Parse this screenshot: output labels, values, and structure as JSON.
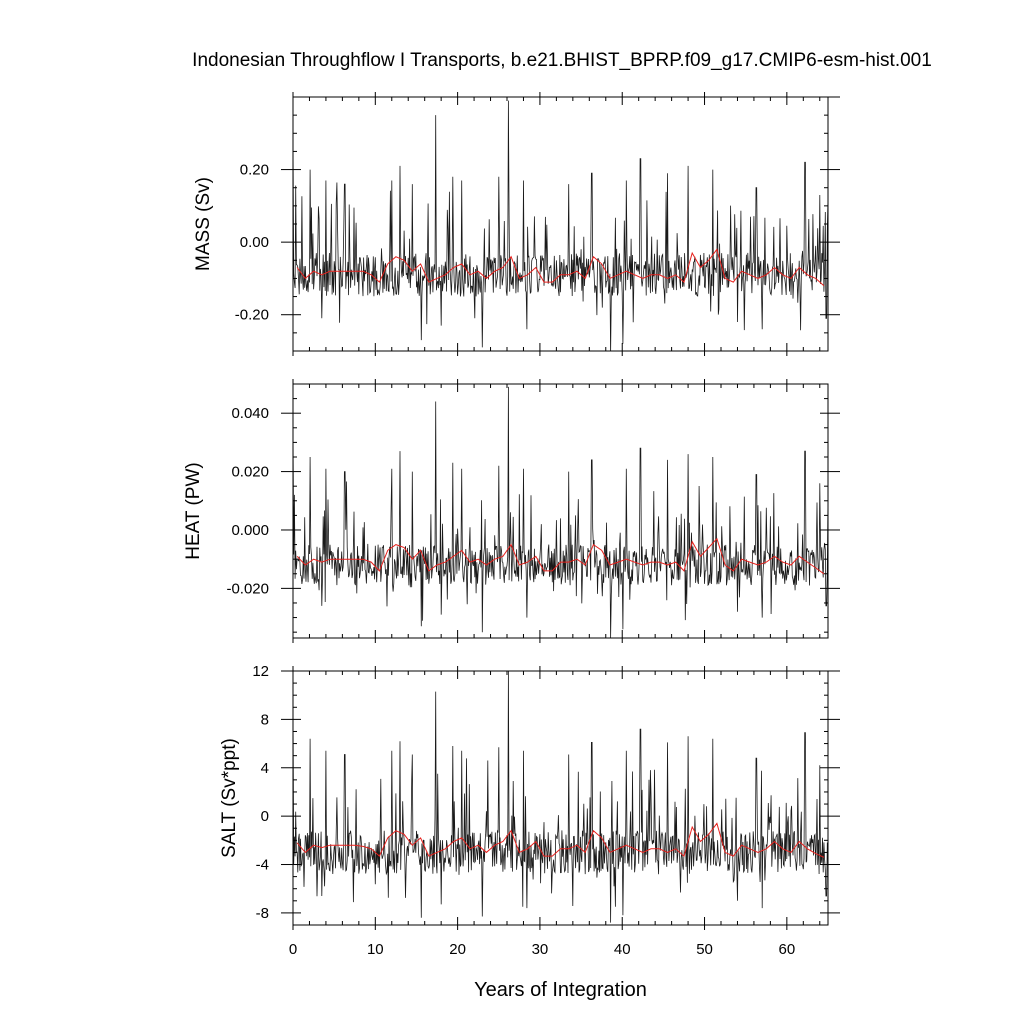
{
  "title": "Indonesian Throughflow I Transports, b.e21.BHIST_BPRP.f09_g17.CMIP6-esm-hist.001",
  "colors": {
    "raw": "#1a1a1a",
    "annual_mean": "#e8211d",
    "axes": "#000000"
  },
  "chart_data": [
    {
      "type": "line",
      "ylabel": "MASS (Sv)",
      "xlabel": "",
      "xlim": [
        0,
        65
      ],
      "ylim": [
        -0.3,
        0.4
      ],
      "x_ticks": [
        0,
        10,
        20,
        30,
        40,
        50,
        60
      ],
      "y_ticks": [
        -0.2,
        0.0,
        0.2
      ],
      "y_tick_labels": [
        "-0.20",
        "0.00",
        "0.20"
      ],
      "x_tick_labels_shown": false,
      "series": [
        {
          "role": "monthly",
          "spikes": [
            [
              0.0,
              0.28
            ],
            [
              2.1,
              0.2
            ],
            [
              4.0,
              0.17
            ],
            [
              6.3,
              0.16
            ],
            [
              12.0,
              0.17
            ],
            [
              13.0,
              0.21
            ],
            [
              14.5,
              0.16
            ],
            [
              17.3,
              0.35
            ],
            [
              19.4,
              0.18
            ],
            [
              20.5,
              0.17
            ],
            [
              25.0,
              0.18
            ],
            [
              26.2,
              0.39
            ],
            [
              28.0,
              0.17
            ],
            [
              33.5,
              0.16
            ],
            [
              36.3,
              0.19
            ],
            [
              40.5,
              0.17
            ],
            [
              42.2,
              0.23
            ],
            [
              45.5,
              0.19
            ],
            [
              48.0,
              0.21
            ],
            [
              51.0,
              0.2
            ],
            [
              56.3,
              0.15
            ],
            [
              62.2,
              0.22
            ],
            [
              64.0,
              0.13
            ]
          ],
          "troughs": [
            [
              3.5,
              -0.21
            ],
            [
              15.6,
              -0.27
            ],
            [
              18.0,
              -0.23
            ],
            [
              23.0,
              -0.29
            ],
            [
              28.4,
              -0.24
            ],
            [
              38.6,
              -0.31
            ],
            [
              40.1,
              -0.28
            ],
            [
              54.0,
              -0.22
            ],
            [
              57.0,
              -0.24
            ],
            [
              64.8,
              -0.21
            ]
          ],
          "baseline": -0.09,
          "noise": 0.06
        },
        {
          "role": "annual_mean",
          "x": [
            0.5,
            1.5,
            2.5,
            3.5,
            4.5,
            5.5,
            6.5,
            7.5,
            8.5,
            9.5,
            10.5,
            11.5,
            12.5,
            13.5,
            14.5,
            15.5,
            16.5,
            17.5,
            18.5,
            19.5,
            20.5,
            21.5,
            22.5,
            23.5,
            24.5,
            25.5,
            26.5,
            27.5,
            28.5,
            29.5,
            30.5,
            31.5,
            32.5,
            33.5,
            34.5,
            35.5,
            36.5,
            37.5,
            38.5,
            39.5,
            40.5,
            41.5,
            42.5,
            43.5,
            44.5,
            45.5,
            46.5,
            47.5,
            48.5,
            49.5,
            50.5,
            51.5,
            52.5,
            53.5,
            54.5,
            55.5,
            56.5,
            57.5,
            58.5,
            59.5,
            60.5,
            61.5,
            62.5,
            63.5,
            64.5
          ],
          "values": [
            -0.07,
            -0.1,
            -0.08,
            -0.09,
            -0.08,
            -0.08,
            -0.08,
            -0.08,
            -0.08,
            -0.09,
            -0.11,
            -0.06,
            -0.04,
            -0.05,
            -0.08,
            -0.06,
            -0.11,
            -0.1,
            -0.09,
            -0.07,
            -0.06,
            -0.09,
            -0.08,
            -0.1,
            -0.08,
            -0.07,
            -0.04,
            -0.1,
            -0.09,
            -0.07,
            -0.11,
            -0.11,
            -0.09,
            -0.09,
            -0.08,
            -0.1,
            -0.04,
            -0.06,
            -0.1,
            -0.09,
            -0.08,
            -0.09,
            -0.1,
            -0.09,
            -0.09,
            -0.1,
            -0.09,
            -0.11,
            -0.03,
            -0.07,
            -0.05,
            -0.02,
            -0.1,
            -0.11,
            -0.08,
            -0.09,
            -0.1,
            -0.09,
            -0.07,
            -0.09,
            -0.1,
            -0.07,
            -0.09,
            -0.1,
            -0.12
          ]
        }
      ]
    },
    {
      "type": "line",
      "ylabel": "HEAT (PW)",
      "xlabel": "",
      "xlim": [
        0,
        65
      ],
      "ylim": [
        -0.037,
        0.05
      ],
      "x_ticks": [
        0,
        10,
        20,
        30,
        40,
        50,
        60
      ],
      "y_ticks": [
        -0.02,
        0.0,
        0.02,
        0.04
      ],
      "y_tick_labels": [
        "-0.020",
        "0.000",
        "0.020",
        "0.040"
      ],
      "x_tick_labels_shown": false,
      "series": [
        {
          "role": "monthly",
          "spikes": [
            [
              0.0,
              0.035
            ],
            [
              2.1,
              0.025
            ],
            [
              4.0,
              0.021
            ],
            [
              6.3,
              0.02
            ],
            [
              12.0,
              0.021
            ],
            [
              13.0,
              0.027
            ],
            [
              14.5,
              0.02
            ],
            [
              17.3,
              0.044
            ],
            [
              19.4,
              0.023
            ],
            [
              20.5,
              0.021
            ],
            [
              25.0,
              0.022
            ],
            [
              26.2,
              0.049
            ],
            [
              28.0,
              0.021
            ],
            [
              33.5,
              0.02
            ],
            [
              36.3,
              0.024
            ],
            [
              40.5,
              0.021
            ],
            [
              42.2,
              0.028
            ],
            [
              45.5,
              0.024
            ],
            [
              48.0,
              0.026
            ],
            [
              51.0,
              0.025
            ],
            [
              56.3,
              0.019
            ],
            [
              62.2,
              0.027
            ],
            [
              64.0,
              0.016
            ]
          ],
          "troughs": [
            [
              3.5,
              -0.026
            ],
            [
              15.6,
              -0.033
            ],
            [
              18.0,
              -0.029
            ],
            [
              23.0,
              -0.035
            ],
            [
              28.4,
              -0.03
            ],
            [
              38.6,
              -0.037
            ],
            [
              40.1,
              -0.034
            ],
            [
              54.0,
              -0.028
            ],
            [
              57.0,
              -0.03
            ],
            [
              64.8,
              -0.026
            ]
          ],
          "baseline": -0.012,
          "noise": 0.007
        },
        {
          "role": "annual_mean",
          "x": [
            0.5,
            1.5,
            2.5,
            3.5,
            4.5,
            5.5,
            6.5,
            7.5,
            8.5,
            9.5,
            10.5,
            11.5,
            12.5,
            13.5,
            14.5,
            15.5,
            16.5,
            17.5,
            18.5,
            19.5,
            20.5,
            21.5,
            22.5,
            23.5,
            24.5,
            25.5,
            26.5,
            27.5,
            28.5,
            29.5,
            30.5,
            31.5,
            32.5,
            33.5,
            34.5,
            35.5,
            36.5,
            37.5,
            38.5,
            39.5,
            40.5,
            41.5,
            42.5,
            43.5,
            44.5,
            45.5,
            46.5,
            47.5,
            48.5,
            49.5,
            50.5,
            51.5,
            52.5,
            53.5,
            54.5,
            55.5,
            56.5,
            57.5,
            58.5,
            59.5,
            60.5,
            61.5,
            62.5,
            63.5,
            64.5
          ],
          "values": [
            -0.009,
            -0.012,
            -0.01,
            -0.011,
            -0.01,
            -0.01,
            -0.01,
            -0.01,
            -0.01,
            -0.011,
            -0.014,
            -0.007,
            -0.005,
            -0.006,
            -0.01,
            -0.007,
            -0.014,
            -0.012,
            -0.011,
            -0.009,
            -0.007,
            -0.011,
            -0.01,
            -0.012,
            -0.01,
            -0.009,
            -0.005,
            -0.012,
            -0.011,
            -0.009,
            -0.014,
            -0.014,
            -0.011,
            -0.011,
            -0.01,
            -0.012,
            -0.005,
            -0.007,
            -0.012,
            -0.011,
            -0.01,
            -0.011,
            -0.012,
            -0.011,
            -0.011,
            -0.012,
            -0.011,
            -0.014,
            -0.004,
            -0.009,
            -0.006,
            -0.003,
            -0.012,
            -0.014,
            -0.01,
            -0.011,
            -0.012,
            -0.011,
            -0.009,
            -0.011,
            -0.012,
            -0.009,
            -0.011,
            -0.013,
            -0.015
          ]
        }
      ]
    },
    {
      "type": "line",
      "ylabel": "SALT (Sv*ppt)",
      "xlabel": "Years of Integration",
      "xlim": [
        0,
        65
      ],
      "ylim": [
        -9,
        12
      ],
      "x_ticks": [
        0,
        10,
        20,
        30,
        40,
        50,
        60
      ],
      "x_tick_labels": [
        "0",
        "10",
        "20",
        "30",
        "40",
        "50",
        "60"
      ],
      "y_ticks": [
        -8,
        -4,
        0,
        4,
        8,
        12
      ],
      "y_tick_labels": [
        "-8",
        "-4",
        "0",
        "4",
        "8",
        "12"
      ],
      "x_tick_labels_shown": true,
      "series": [
        {
          "role": "monthly",
          "spikes": [
            [
              0.0,
              9.0
            ],
            [
              2.1,
              6.4
            ],
            [
              4.0,
              5.4
            ],
            [
              6.3,
              5.1
            ],
            [
              12.0,
              5.4
            ],
            [
              13.0,
              6.2
            ],
            [
              14.5,
              5.1
            ],
            [
              17.3,
              10.3
            ],
            [
              19.4,
              5.8
            ],
            [
              20.5,
              5.4
            ],
            [
              25.0,
              5.7
            ],
            [
              26.2,
              12.0
            ],
            [
              28.0,
              5.4
            ],
            [
              33.5,
              5.1
            ],
            [
              36.3,
              6.1
            ],
            [
              40.5,
              5.4
            ],
            [
              42.2,
              7.2
            ],
            [
              45.5,
              6.1
            ],
            [
              48.0,
              6.6
            ],
            [
              51.0,
              6.4
            ],
            [
              56.3,
              4.8
            ],
            [
              62.2,
              6.9
            ],
            [
              64.0,
              4.2
            ]
          ],
          "troughs": [
            [
              3.5,
              -6.6
            ],
            [
              15.6,
              -8.4
            ],
            [
              18.0,
              -7.3
            ],
            [
              23.0,
              -8.3
            ],
            [
              28.4,
              -7.6
            ],
            [
              38.6,
              -8.8
            ],
            [
              40.1,
              -8.2
            ],
            [
              54.0,
              -7.0
            ],
            [
              57.0,
              -7.6
            ],
            [
              64.8,
              -6.6
            ]
          ],
          "baseline": -3.0,
          "noise": 1.8
        },
        {
          "role": "annual_mean",
          "x": [
            0.5,
            1.5,
            2.5,
            3.5,
            4.5,
            5.5,
            6.5,
            7.5,
            8.5,
            9.5,
            10.5,
            11.5,
            12.5,
            13.5,
            14.5,
            15.5,
            16.5,
            17.5,
            18.5,
            19.5,
            20.5,
            21.5,
            22.5,
            23.5,
            24.5,
            25.5,
            26.5,
            27.5,
            28.5,
            29.5,
            30.5,
            31.5,
            32.5,
            33.5,
            34.5,
            35.5,
            36.5,
            37.5,
            38.5,
            39.5,
            40.5,
            41.5,
            42.5,
            43.5,
            44.5,
            45.5,
            46.5,
            47.5,
            48.5,
            49.5,
            50.5,
            51.5,
            52.5,
            53.5,
            54.5,
            55.5,
            56.5,
            57.5,
            58.5,
            59.5,
            60.5,
            61.5,
            62.5,
            63.5,
            64.5
          ],
          "values": [
            -2.2,
            -3.0,
            -2.4,
            -2.6,
            -2.4,
            -2.4,
            -2.4,
            -2.4,
            -2.5,
            -2.7,
            -3.3,
            -1.8,
            -1.2,
            -1.5,
            -2.4,
            -1.8,
            -3.3,
            -3.0,
            -2.7,
            -2.1,
            -1.8,
            -2.7,
            -2.4,
            -3.0,
            -2.4,
            -2.1,
            -1.2,
            -3.0,
            -2.7,
            -2.1,
            -3.3,
            -3.3,
            -2.7,
            -2.7,
            -2.4,
            -3.0,
            -1.2,
            -1.8,
            -3.0,
            -2.7,
            -2.4,
            -2.7,
            -3.0,
            -2.7,
            -2.7,
            -3.0,
            -2.7,
            -3.3,
            -0.9,
            -2.1,
            -1.5,
            -0.6,
            -3.0,
            -3.3,
            -2.4,
            -2.7,
            -3.0,
            -2.7,
            -2.1,
            -2.7,
            -3.0,
            -2.1,
            -2.7,
            -3.1,
            -3.4
          ]
        }
      ]
    }
  ]
}
